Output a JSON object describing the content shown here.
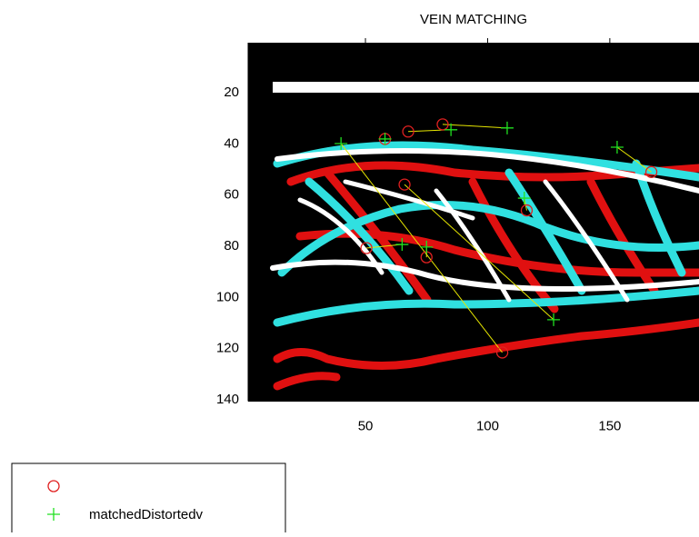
{
  "chart_data": {
    "type": "scatter",
    "title": "VEIN MATCHING",
    "xlim": [
      2,
      186.5
    ],
    "ylim": [
      0.5,
      140.5
    ],
    "y_reversed": true,
    "xticks": [
      50,
      100,
      150
    ],
    "yticks": [
      20,
      40,
      60,
      80,
      100,
      120,
      140
    ],
    "match_line_color": "#e6e600",
    "series": [
      {
        "marker": "circle",
        "color": "#e02020",
        "x": [
          81.6,
          67.5,
          106,
          58,
          66,
          50.4,
          75,
          116,
          167
        ],
        "values": [
          32.4,
          35.2,
          121.5,
          38.1,
          55.9,
          80.7,
          84.3,
          66,
          51
        ]
      },
      {
        "name": "matchedDistortedv",
        "marker": "plus",
        "color": "#20e020",
        "x": [
          108,
          85,
          40,
          58,
          127,
          65,
          75,
          115,
          153
        ],
        "values": [
          33.8,
          34.5,
          39.9,
          38.1,
          108.7,
          79.3,
          80.3,
          61.2,
          41.3
        ]
      }
    ]
  }
}
